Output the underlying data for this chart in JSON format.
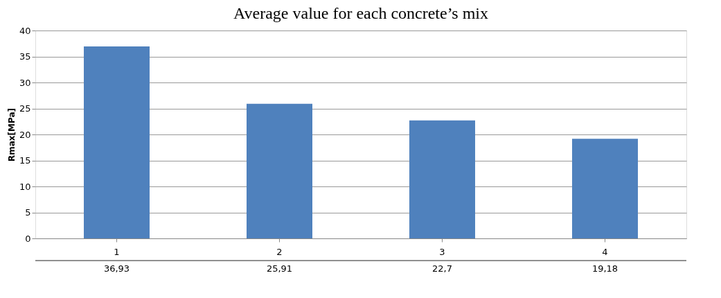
{
  "chart_data": {
    "type": "bar",
    "title": "Average value for each concrete’s mix",
    "ylabel": "Rmax[MPa]",
    "categories": [
      "1",
      "2",
      "3",
      "4"
    ],
    "values": [
      36.93,
      25.91,
      22.7,
      19.18
    ],
    "value_labels": [
      "36,93",
      "25,91",
      "22,7",
      "19,18"
    ],
    "color": "#4f81bd",
    "ylim": [
      0,
      40
    ],
    "yticks": [
      0,
      5,
      10,
      15,
      20,
      25,
      30,
      35,
      40
    ],
    "grid": "y"
  }
}
